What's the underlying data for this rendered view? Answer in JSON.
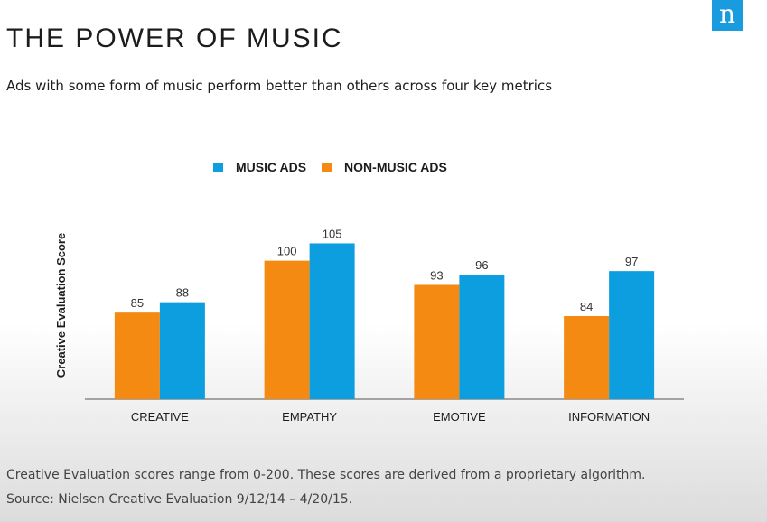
{
  "header": {
    "title": "THE POWER OF MUSIC",
    "subtitle": "Ads with some form of music perform better than others across four key metrics",
    "logo_letter": "n"
  },
  "footer": {
    "note": "Creative Evaluation scores range from 0-200. These scores are derived from a proprietary algorithm.",
    "source": "Source:  Nielsen Creative Evaluation 9/12/14 – 4/20/15."
  },
  "colors": {
    "music": "#0d9ee0",
    "non_music": "#f58a12",
    "logo": "#1a9be0"
  },
  "chart_data": {
    "type": "bar",
    "title": "",
    "xlabel": "",
    "ylabel": "Creative Evaluation Score",
    "categories": [
      "CREATIVE",
      "EMPATHY",
      "EMOTIVE",
      "INFORMATION"
    ],
    "series": [
      {
        "name": "NON-MUSIC ADS",
        "values": [
          85,
          100,
          93,
          84
        ]
      },
      {
        "name": "MUSIC ADS",
        "values": [
          88,
          105,
          96,
          97
        ]
      }
    ],
    "legend_order": [
      "MUSIC ADS",
      "NON-MUSIC ADS"
    ],
    "ylim": [
      60,
      110
    ],
    "grid": false,
    "legend_position": "top-center",
    "data_labels": true
  }
}
